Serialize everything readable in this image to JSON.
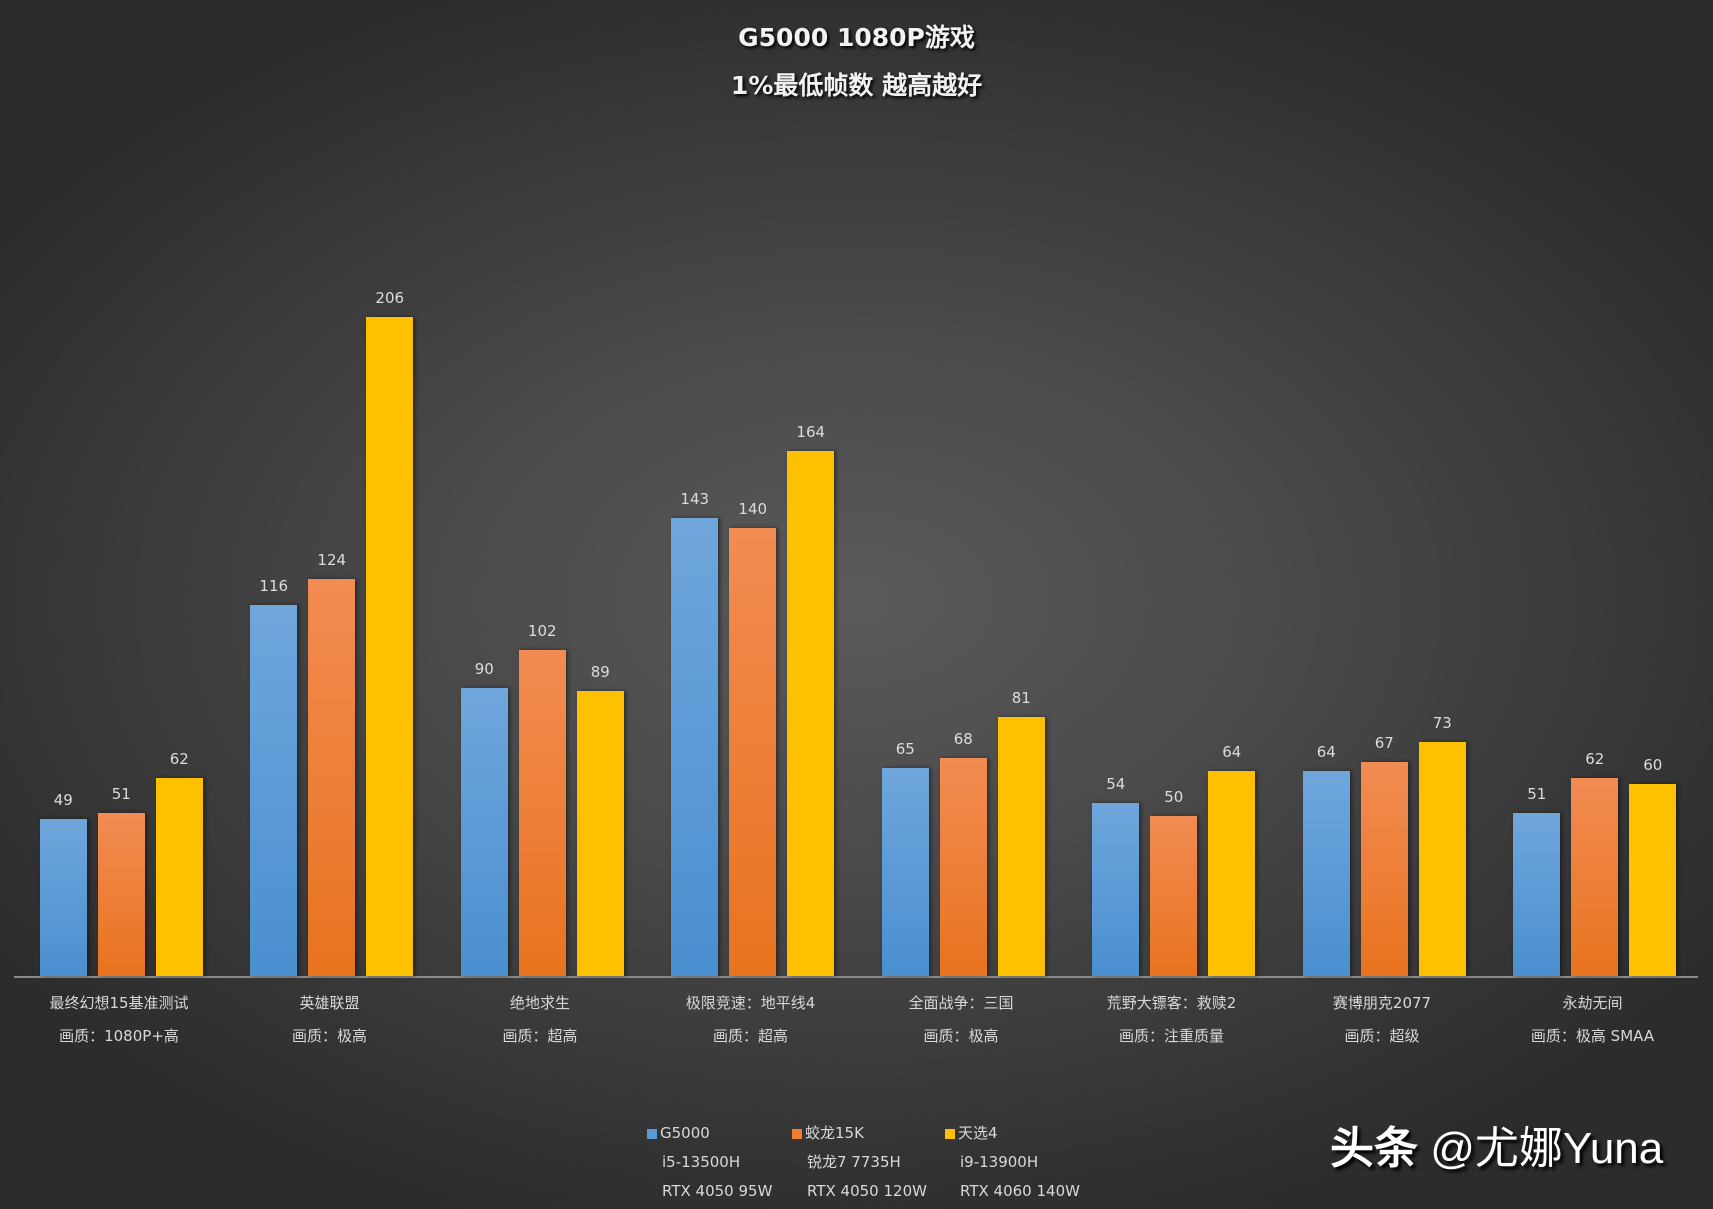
{
  "header": {
    "title": "G5000 1080P游戏",
    "subtitle": "1%最低帧数 越高越好"
  },
  "colors": {
    "G5000": "#5b9bd5",
    "蛟龙15K": "#ed7d31",
    "天选4": "#ffc000",
    "background": "#3a3a3a"
  },
  "categories": [
    {
      "name": "最终幻想15基准测试",
      "quality": "画质：1080P+高"
    },
    {
      "name": "英雄联盟",
      "quality": "画质：极高"
    },
    {
      "name": "绝地求生",
      "quality": "画质：超高"
    },
    {
      "name": "极限竞速：地平线4",
      "quality": "画质：超高"
    },
    {
      "name": "全面战争：三国",
      "quality": "画质：极高"
    },
    {
      "name": "荒野大镖客：救赎2",
      "quality": "画质：注重质量"
    },
    {
      "name": "赛博朋克2077",
      "quality": "画质：超级"
    },
    {
      "name": "永劫无间",
      "quality": "画质：极高 SMAA"
    }
  ],
  "legend": [
    {
      "name": "G5000",
      "cpu": "i5-13500H",
      "gpu": "RTX 4050 95W"
    },
    {
      "name": "蛟龙15K",
      "cpu": "锐龙7 7735H",
      "gpu": "RTX 4050 120W"
    },
    {
      "name": "天选4",
      "cpu": "i9-13900H",
      "gpu": "RTX 4060 140W"
    }
  ],
  "watermark": {
    "prefix": "头条",
    "handle": "@尤娜Yuna"
  },
  "chart_data": {
    "type": "bar",
    "title": "G5000 1080P游戏",
    "subtitle": "1%最低帧数 越高越好",
    "xlabel": "",
    "ylabel": "",
    "categories": [
      "最终幻想15基准测试",
      "英雄联盟",
      "绝地求生",
      "极限竞速：地平线4",
      "全面战争：三国",
      "荒野大镖客：救赎2",
      "赛博朋克2077",
      "永劫无间"
    ],
    "category_sublabels": [
      "画质：1080P+高",
      "画质：极高",
      "画质：超高",
      "画质：超高",
      "画质：极高",
      "画质：注重质量",
      "画质：超级",
      "画质：极高 SMAA"
    ],
    "series": [
      {
        "name": "G5000",
        "description": "i5-13500H / RTX 4050 95W",
        "color": "#5b9bd5",
        "values": [
          49,
          116,
          90,
          143,
          65,
          54,
          64,
          51
        ]
      },
      {
        "name": "蛟龙15K",
        "description": "锐龙7 7735H / RTX 4050 120W",
        "color": "#ed7d31",
        "values": [
          51,
          124,
          102,
          140,
          68,
          50,
          67,
          62
        ]
      },
      {
        "name": "天选4",
        "description": "i9-13900H / RTX 4060 140W",
        "color": "#ffc000",
        "values": [
          62,
          206,
          89,
          164,
          81,
          64,
          73,
          60
        ]
      }
    ],
    "ylim": [
      0,
      206
    ],
    "grid": false,
    "data_labels": true,
    "legend_position": "bottom"
  }
}
